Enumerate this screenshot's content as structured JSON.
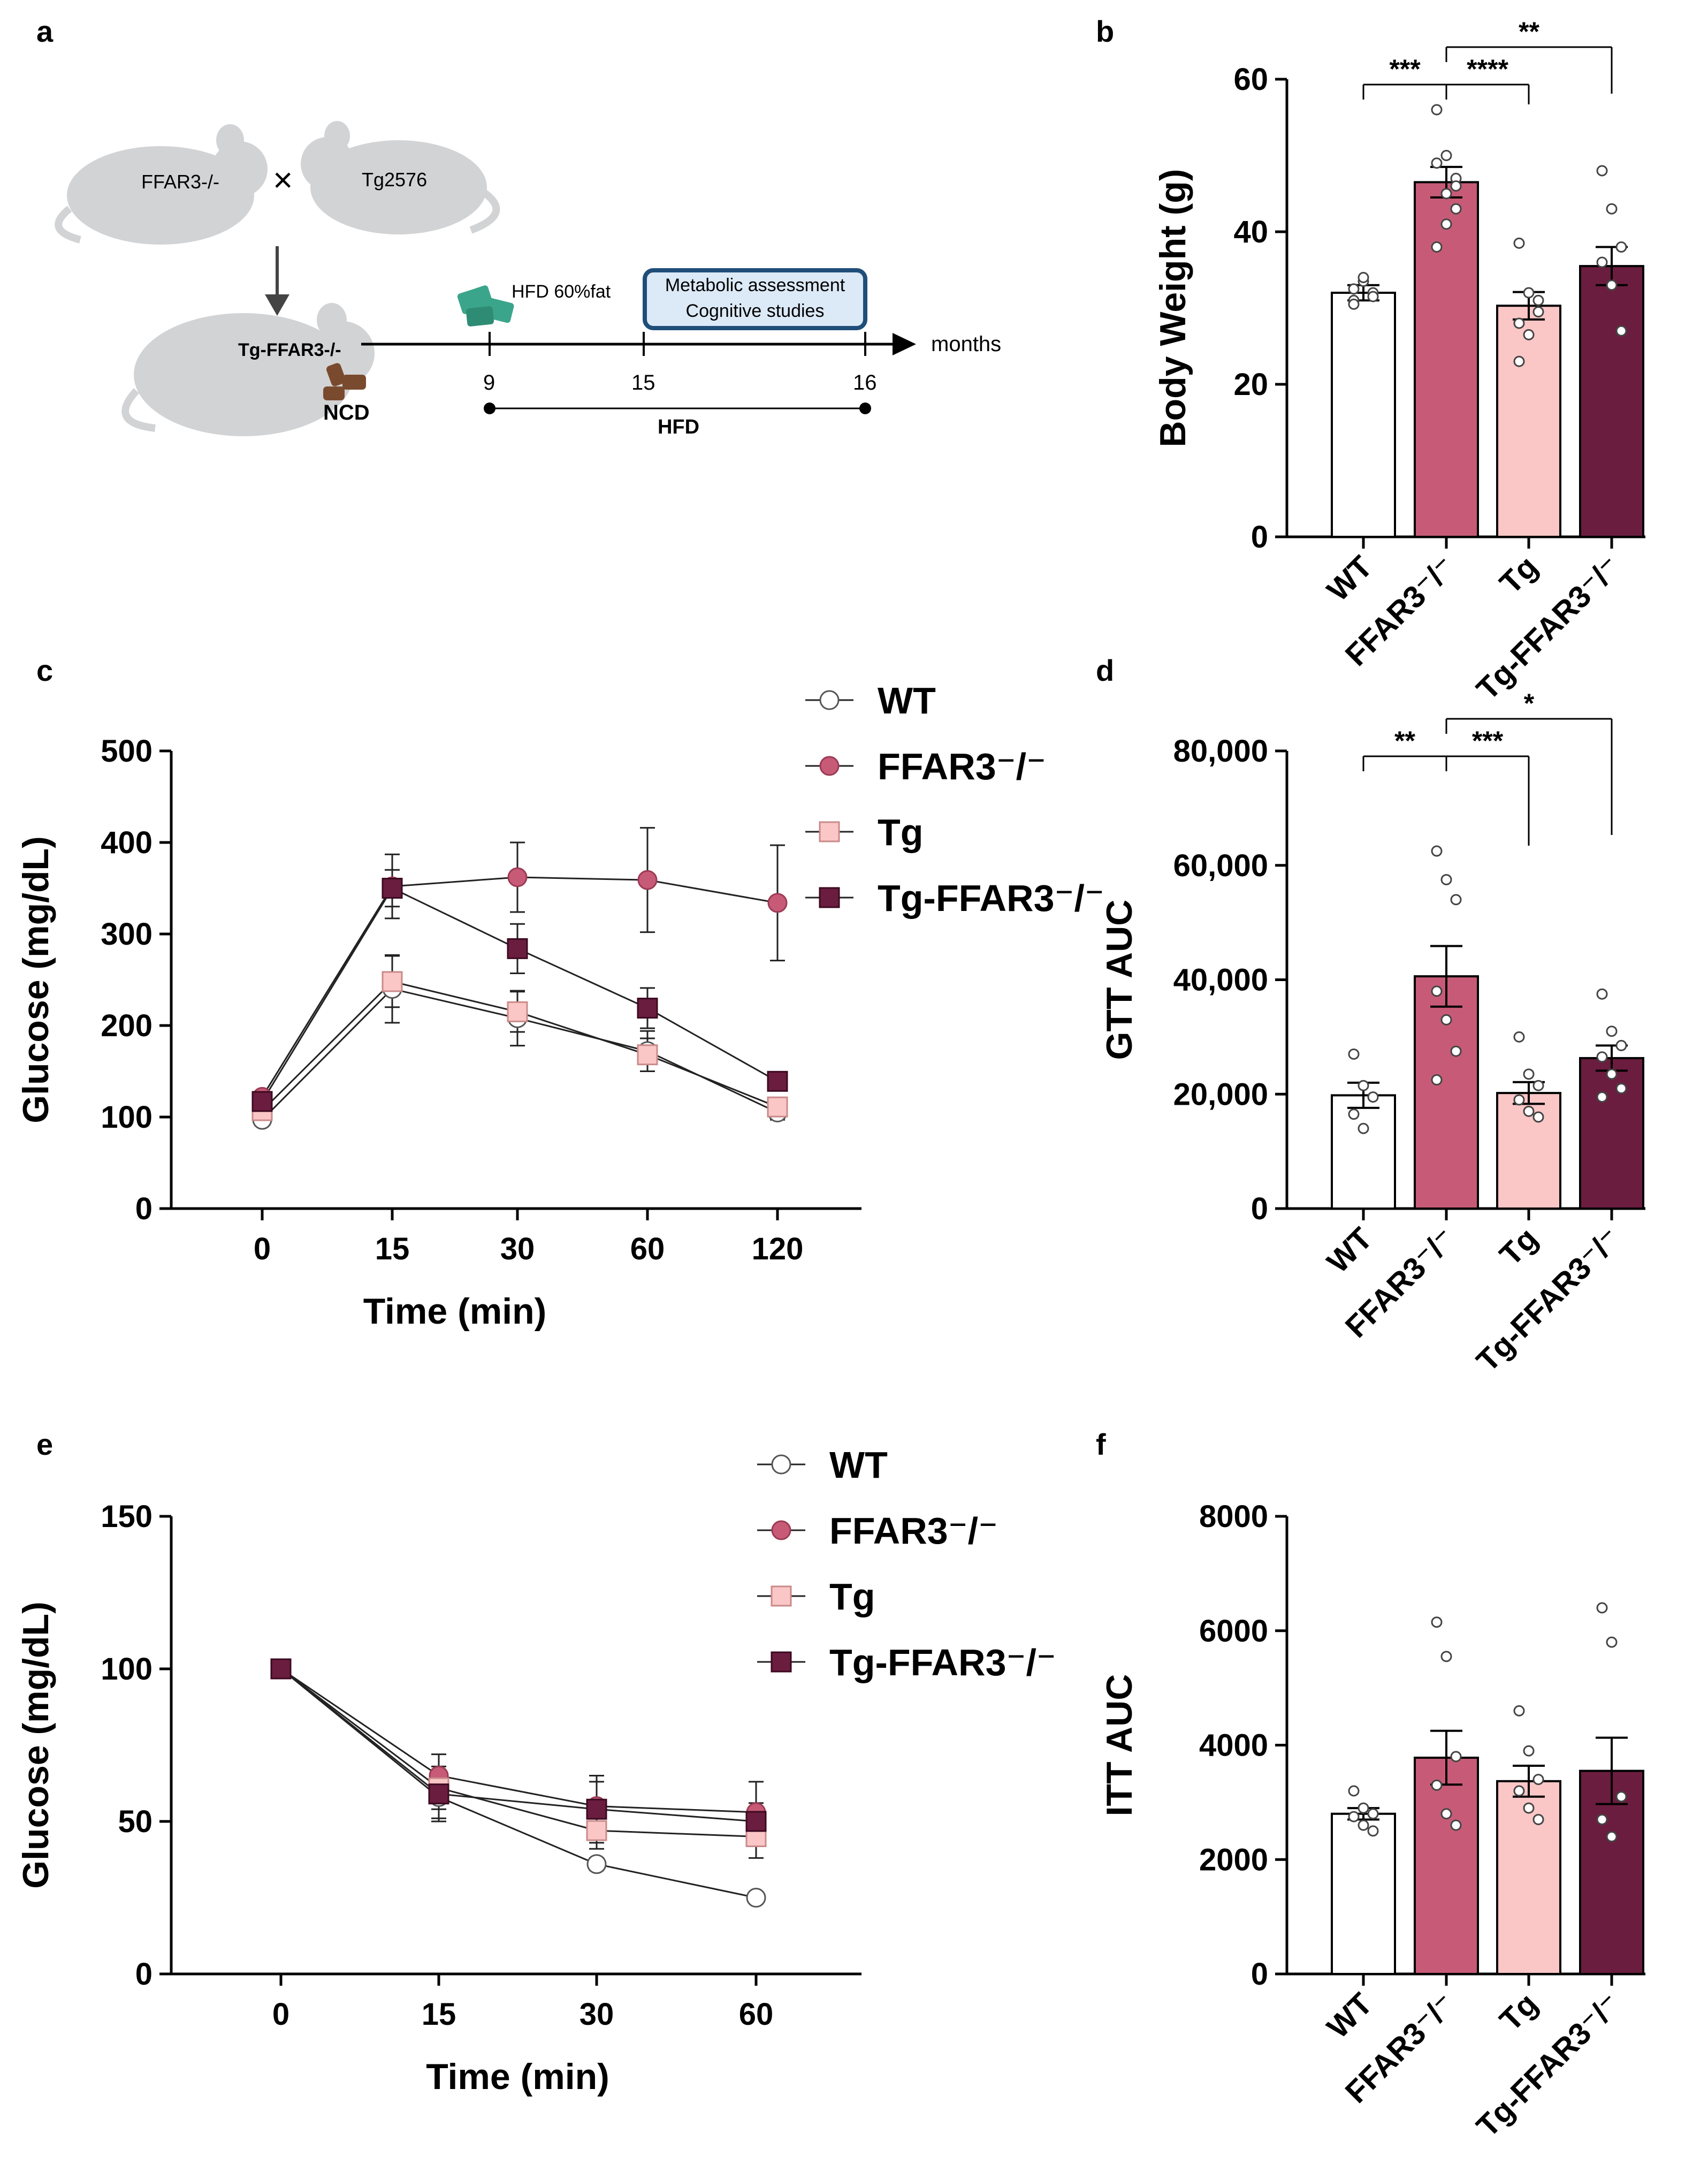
{
  "panel_labels": {
    "a": "a",
    "b": "b",
    "c": "c",
    "d": "d",
    "e": "e",
    "f": "f"
  },
  "colors": {
    "wt": "#ffffff",
    "ffar3": "#c75b77",
    "tg": "#fbc6c6",
    "tgffar3": "#6b1d3f",
    "hfd": "#a3143e",
    "tg_label": "#3a7bbf",
    "pellet": "#7a4a2e",
    "box_fill": "#dce9f7",
    "box_border": "#1f4e79",
    "drug": "#3aa58a"
  },
  "schematic": {
    "mouse1_label": "FFAR3-/-",
    "cross_symbol": "×",
    "mouse2_label": "Tg2576",
    "offspring_label": "Tg-FFAR3-/-",
    "diet_label": "NCD",
    "hfd_pill_label": "HFD 60%fat",
    "assessment_line1": "Metabolic assessment",
    "assessment_line2": "Cognitive studies",
    "axis_unit": "months",
    "timepoints": [
      "9",
      "15",
      "16"
    ],
    "bar_label": "HFD"
  },
  "chart_data": [
    {
      "id": "b",
      "type": "bar",
      "ylabel": "Body Weight (g)",
      "xlabel": "",
      "categories": [
        "WT",
        "FFAR3⁻/⁻",
        "Tg",
        "Tg-FFAR3⁻/⁻"
      ],
      "values": [
        32,
        46.5,
        30.3,
        35.5
      ],
      "errors": [
        1.0,
        2.0,
        1.8,
        2.5
      ],
      "points": [
        [
          31,
          33.5,
          32,
          30.5,
          34,
          31.5,
          32.5
        ],
        [
          56,
          50,
          47,
          49,
          45,
          43,
          38,
          41,
          46
        ],
        [
          38.5,
          32,
          29.5,
          28,
          26.5,
          31,
          23
        ],
        [
          48,
          43,
          38,
          36,
          33,
          27
        ]
      ],
      "ylim": [
        0,
        60
      ],
      "yticks": [
        "0",
        "20",
        "40",
        "60"
      ],
      "ytick_values": [
        0,
        20,
        40,
        60
      ],
      "significance": [
        {
          "from": 0,
          "to": 1,
          "label": "***"
        },
        {
          "from": 1,
          "to": 2,
          "label": "****"
        },
        {
          "from": 1,
          "to": 3,
          "label": "**"
        }
      ]
    },
    {
      "id": "c",
      "type": "line",
      "ylabel": "Glucose (mg/dL)",
      "xlabel": "Time (min)",
      "x": [
        "0",
        "15",
        "30",
        "60",
        "120"
      ],
      "ylim": [
        0,
        500
      ],
      "yticks": [
        "0",
        "100",
        "200",
        "300",
        "400",
        "500"
      ],
      "ytick_values": [
        0,
        100,
        200,
        300,
        400,
        500
      ],
      "series": [
        {
          "name": "WT",
          "values": [
            97,
            240,
            208,
            172,
            105
          ],
          "errors": [
            5,
            37,
            30,
            22,
            8
          ]
        },
        {
          "name": "FFAR3⁻/⁻",
          "values": [
            122,
            352,
            362,
            359,
            334
          ],
          "errors": [
            6,
            35,
            38,
            57,
            63
          ]
        },
        {
          "name": "Tg",
          "values": [
            107,
            248,
            215,
            168,
            111
          ],
          "errors": [
            5,
            28,
            22,
            18,
            8
          ]
        },
        {
          "name": "Tg-FFAR3⁻/⁻",
          "values": [
            117,
            350,
            284,
            219,
            139
          ],
          "errors": [
            6,
            20,
            27,
            22,
            6
          ]
        }
      ]
    },
    {
      "id": "d",
      "type": "bar",
      "ylabel": "GTT AUC",
      "xlabel": "",
      "categories": [
        "WT",
        "FFAR3⁻/⁻",
        "Tg",
        "Tg-FFAR3⁻/⁻"
      ],
      "values": [
        19800,
        40600,
        20200,
        26300
      ],
      "errors": [
        2200,
        5300,
        1900,
        2200
      ],
      "points": [
        [
          27000,
          21500,
          19500,
          16500,
          14000
        ],
        [
          62500,
          57500,
          54000,
          38000,
          33000,
          27500,
          22500
        ],
        [
          30000,
          23500,
          21500,
          19000,
          17000,
          16000
        ],
        [
          37500,
          31000,
          28500,
          26500,
          23500,
          21000,
          19500
        ]
      ],
      "ylim": [
        0,
        80000
      ],
      "yticks": [
        "0",
        "20,000",
        "40,000",
        "60,000",
        "80,000"
      ],
      "ytick_values": [
        0,
        20000,
        40000,
        60000,
        80000
      ],
      "significance": [
        {
          "from": 0,
          "to": 1,
          "label": "**"
        },
        {
          "from": 1,
          "to": 2,
          "label": "***"
        },
        {
          "from": 1,
          "to": 3,
          "label": "*"
        }
      ]
    },
    {
      "id": "e",
      "type": "line",
      "ylabel": "Glucose (mg/dL)",
      "xlabel": "Time (min)",
      "x": [
        "0",
        "15",
        "30",
        "60"
      ],
      "ylim": [
        0,
        150
      ],
      "yticks": [
        "0",
        "50",
        "100",
        "150"
      ],
      "ytick_values": [
        0,
        50,
        100,
        150
      ],
      "series": [
        {
          "name": "WT",
          "values": [
            100,
            58,
            36,
            25
          ],
          "errors": [
            0,
            8,
            2,
            1
          ]
        },
        {
          "name": "FFAR3⁻/⁻",
          "values": [
            100,
            65,
            55,
            53
          ],
          "errors": [
            0,
            7,
            8,
            10
          ]
        },
        {
          "name": "Tg",
          "values": [
            100,
            61,
            47,
            45
          ],
          "errors": [
            0,
            7,
            6,
            7
          ]
        },
        {
          "name": "Tg-FFAR3⁻/⁻",
          "values": [
            100,
            59,
            54,
            50
          ],
          "errors": [
            0,
            8,
            11,
            6
          ]
        }
      ]
    },
    {
      "id": "f",
      "type": "bar",
      "ylabel": "ITT AUC",
      "xlabel": "",
      "categories": [
        "WT",
        "FFAR3⁻/⁻",
        "Tg",
        "Tg-FFAR3⁻/⁻"
      ],
      "values": [
        2800,
        3780,
        3370,
        3550
      ],
      "errors": [
        100,
        470,
        270,
        580
      ],
      "points": [
        [
          3200,
          2900,
          2800,
          2750,
          2600,
          2500
        ],
        [
          6150,
          5550,
          3800,
          3300,
          2800,
          2600
        ],
        [
          4600,
          3900,
          3400,
          3200,
          2900,
          2700
        ],
        [
          6400,
          5800,
          3100,
          2700,
          2400
        ]
      ],
      "ylim": [
        0,
        8000
      ],
      "yticks": [
        "0",
        "2000",
        "4000",
        "6000",
        "8000"
      ],
      "ytick_values": [
        0,
        2000,
        4000,
        6000,
        8000
      ],
      "significance": []
    }
  ]
}
